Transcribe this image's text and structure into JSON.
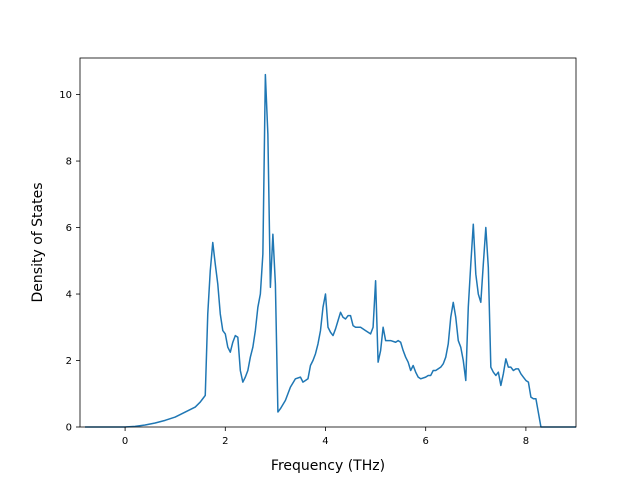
{
  "chart_data": {
    "type": "line",
    "xlabel": "Frequency (THz)",
    "ylabel": "Density of States",
    "xlim": [
      -0.9,
      9.0
    ],
    "ylim": [
      0,
      11.1
    ],
    "grid": false,
    "x_ticks": [
      0,
      2,
      4,
      6,
      8
    ],
    "y_ticks": [
      0,
      2,
      4,
      6,
      8,
      10
    ],
    "x_tick_labels": [
      "0",
      "2",
      "4",
      "6",
      "8"
    ],
    "y_tick_labels": [
      "0",
      "2",
      "4",
      "6",
      "8",
      "10"
    ],
    "series": [
      {
        "color": "#1f77b4",
        "x": [
          -0.8,
          -0.4,
          0.0,
          0.2,
          0.4,
          0.6,
          0.8,
          1.0,
          1.2,
          1.4,
          1.5,
          1.55,
          1.6,
          1.65,
          1.7,
          1.75,
          1.8,
          1.85,
          1.9,
          1.95,
          2.0,
          2.05,
          2.1,
          2.15,
          2.2,
          2.25,
          2.3,
          2.35,
          2.4,
          2.45,
          2.5,
          2.55,
          2.6,
          2.65,
          2.7,
          2.75,
          2.8,
          2.85,
          2.9,
          2.95,
          3.0,
          3.05,
          3.1,
          3.2,
          3.3,
          3.4,
          3.5,
          3.55,
          3.6,
          3.65,
          3.7,
          3.75,
          3.8,
          3.85,
          3.9,
          3.95,
          4.0,
          4.05,
          4.1,
          4.15,
          4.2,
          4.25,
          4.3,
          4.35,
          4.4,
          4.45,
          4.5,
          4.55,
          4.6,
          4.7,
          4.8,
          4.85,
          4.9,
          4.95,
          5.0,
          5.05,
          5.1,
          5.15,
          5.2,
          5.3,
          5.4,
          5.45,
          5.5,
          5.55,
          5.6,
          5.65,
          5.7,
          5.75,
          5.8,
          5.85,
          5.9,
          6.0,
          6.05,
          6.1,
          6.15,
          6.2,
          6.3,
          6.35,
          6.4,
          6.45,
          6.5,
          6.55,
          6.6,
          6.65,
          6.7,
          6.75,
          6.8,
          6.85,
          6.9,
          6.95,
          7.0,
          7.05,
          7.1,
          7.15,
          7.2,
          7.25,
          7.3,
          7.35,
          7.4,
          7.45,
          7.5,
          7.55,
          7.6,
          7.65,
          7.7,
          7.75,
          7.8,
          7.85,
          7.9,
          7.95,
          8.0,
          8.05,
          8.1,
          8.15,
          8.2,
          8.3,
          9.0
        ],
        "y": [
          0.0,
          0.0,
          0.0,
          0.02,
          0.06,
          0.12,
          0.2,
          0.3,
          0.45,
          0.6,
          0.75,
          0.85,
          0.95,
          3.4,
          4.7,
          5.55,
          4.9,
          4.3,
          3.4,
          2.9,
          2.8,
          2.4,
          2.25,
          2.55,
          2.75,
          2.7,
          1.7,
          1.35,
          1.5,
          1.7,
          2.1,
          2.4,
          2.9,
          3.6,
          4.0,
          5.2,
          10.6,
          8.8,
          4.2,
          5.8,
          4.3,
          0.45,
          0.55,
          0.8,
          1.2,
          1.45,
          1.5,
          1.35,
          1.4,
          1.45,
          1.85,
          2.0,
          2.2,
          2.5,
          2.9,
          3.6,
          4.0,
          3.0,
          2.85,
          2.75,
          2.95,
          3.2,
          3.45,
          3.3,
          3.25,
          3.35,
          3.35,
          3.05,
          3.0,
          3.0,
          2.9,
          2.85,
          2.8,
          3.0,
          4.4,
          1.95,
          2.3,
          3.0,
          2.6,
          2.6,
          2.55,
          2.6,
          2.55,
          2.3,
          2.1,
          1.95,
          1.7,
          1.85,
          1.65,
          1.5,
          1.45,
          1.5,
          1.55,
          1.55,
          1.7,
          1.7,
          1.8,
          1.9,
          2.1,
          2.5,
          3.3,
          3.75,
          3.3,
          2.6,
          2.4,
          2.0,
          1.4,
          3.6,
          4.9,
          6.1,
          4.6,
          4.0,
          3.75,
          4.9,
          6.0,
          4.8,
          1.8,
          1.65,
          1.55,
          1.65,
          1.25,
          1.6,
          2.05,
          1.8,
          1.8,
          1.7,
          1.75,
          1.75,
          1.6,
          1.5,
          1.4,
          1.35,
          0.9,
          0.85,
          0.85,
          0.0,
          0.0
        ]
      }
    ]
  }
}
